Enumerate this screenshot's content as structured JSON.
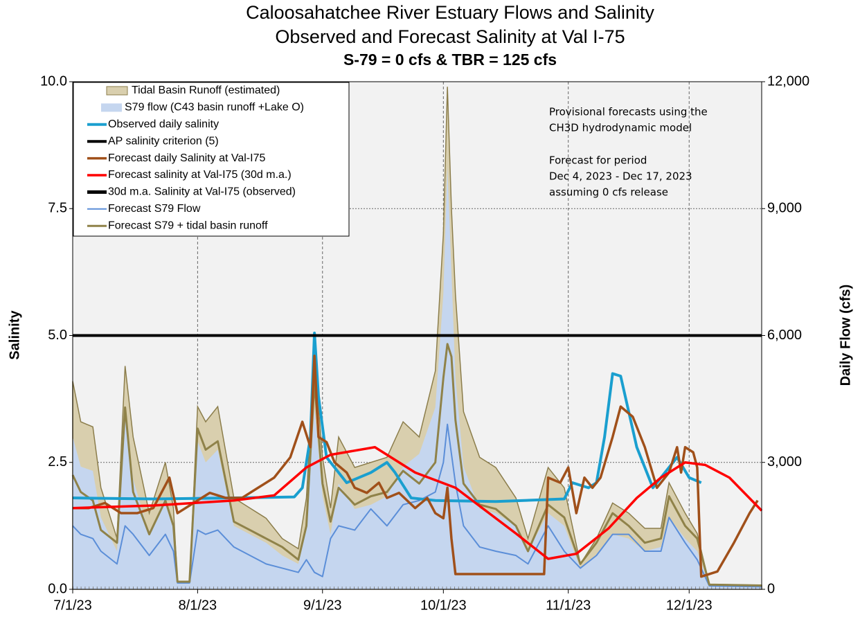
{
  "chart_data": {
    "type": "line",
    "title": "Caloosahatchee River Estuary Flows and Salinity",
    "subtitle": "Observed and Forecast Salinity at Val I-75",
    "subtitle2": "S-79 = 0 cfs & TBR =  125 cfs",
    "ylabel": "Salinity",
    "y2label": "Daily Flow (cfs)",
    "annotations": [
      "Provisional forecasts using the",
      "CH3D hydrodynamic model",
      "Forecast for period",
      "Dec 4, 2023 - Dec 17, 2023",
      "assuming 0 cfs release"
    ],
    "xlim": [
      "7/1/23",
      "12/19/23"
    ],
    "xticks": [
      "7/1/23",
      "8/1/23",
      "9/1/23",
      "10/1/23",
      "11/1/23",
      "12/1/23"
    ],
    "ylim": [
      0,
      10
    ],
    "yticks": [
      {
        "value": 0,
        "label": "0.0"
      },
      2.5,
      {
        "value": 5,
        "label": "5.0"
      },
      7.5,
      {
        "value": 10,
        "label": "10.0"
      }
    ],
    "y2lim": [
      0,
      12000
    ],
    "y2ticks": [
      0,
      {
        "value": 3000,
        "label": "3,000"
      },
      {
        "value": 6000,
        "label": "6,000"
      },
      {
        "value": 9000,
        "label": "9,000"
      },
      {
        "value": 12000,
        "label": "12,000"
      }
    ],
    "grid": true,
    "legend": "upper left",
    "series": [
      {
        "name": "Tidal Basin Runoff (estimated)",
        "type": "area",
        "axis": "y2",
        "color": "#d9cfae",
        "edge": "#8b7d4b",
        "x": [
          "7/1/23",
          "7/3/23",
          "7/6/23",
          "7/8/23",
          "7/12/23",
          "7/14/23",
          "7/16/23",
          "7/20/23",
          "7/24/23",
          "7/26/23",
          "7/27/23",
          "7/30/23",
          "8/1/23",
          "8/3/23",
          "8/6/23",
          "8/10/23",
          "8/14/23",
          "8/18/23",
          "8/22/23",
          "8/26/23",
          "8/28/23",
          "8/30/23",
          "9/1/23",
          "9/3/23",
          "9/5/23",
          "9/9/23",
          "9/13/23",
          "9/17/23",
          "9/21/23",
          "9/25/23",
          "9/29/23",
          "10/1/23",
          "10/2/23",
          "10/3/23",
          "10/4/23",
          "10/6/23",
          "10/10/23",
          "10/14/23",
          "10/19/23",
          "10/22/23",
          "10/27/23",
          "10/31/23",
          "11/4/23",
          "11/8/23",
          "11/12/23",
          "11/16/23",
          "11/20/23",
          "11/24/23",
          "11/26/23",
          "11/30/23",
          "12/3/23",
          "12/6/23",
          "12/19/23"
        ],
        "values": [
          4920,
          3960,
          3840,
          2400,
          1200,
          5280,
          3600,
          1800,
          3000,
          1920,
          180,
          180,
          4320,
          3960,
          4320,
          2160,
          1920,
          1680,
          1200,
          960,
          2160,
          5520,
          3120,
          1920,
          3600,
          2880,
          3000,
          3120,
          3960,
          3600,
          5160,
          8400,
          11880,
          9000,
          6960,
          4200,
          3120,
          2880,
          2160,
          1200,
          2880,
          2400,
          600,
          1200,
          2040,
          1800,
          1440,
          1440,
          2520,
          1800,
          1320,
          120,
          96
        ]
      },
      {
        "name": "S79 flow (C43 basin runoff +Lake O)",
        "type": "area",
        "axis": "y2",
        "color": "#c5d6ef",
        "x": [
          "7/1/23",
          "7/3/23",
          "7/6/23",
          "7/8/23",
          "7/12/23",
          "7/14/23",
          "7/16/23",
          "7/20/23",
          "7/24/23",
          "7/26/23",
          "7/27/23",
          "7/30/23",
          "8/1/23",
          "8/3/23",
          "8/6/23",
          "8/10/23",
          "8/14/23",
          "8/18/23",
          "8/22/23",
          "8/26/23",
          "8/28/23",
          "8/30/23",
          "9/1/23",
          "9/3/23",
          "9/5/23",
          "9/9/23",
          "9/13/23",
          "9/17/23",
          "9/21/23",
          "9/25/23",
          "9/29/23",
          "10/1/23",
          "10/2/23",
          "10/3/23",
          "10/4/23",
          "10/6/23",
          "10/10/23",
          "10/14/23",
          "10/19/23",
          "10/22/23",
          "10/27/23",
          "10/31/23",
          "11/4/23",
          "11/8/23",
          "11/12/23",
          "11/16/23",
          "11/20/23",
          "11/24/23",
          "11/26/23",
          "11/30/23",
          "12/3/23",
          "12/6/23",
          "12/19/23"
        ],
        "values": [
          3600,
          2900,
          2800,
          1700,
          900,
          4300,
          2600,
          1300,
          2200,
          1400,
          150,
          150,
          3500,
          3000,
          3300,
          1500,
          1300,
          1100,
          800,
          600,
          1400,
          4300,
          2200,
          1300,
          2500,
          1900,
          2000,
          2200,
          2900,
          3200,
          4300,
          7000,
          10000,
          7500,
          5000,
          2900,
          1900,
          1800,
          1500,
          900,
          1800,
          1500,
          500,
          800,
          1300,
          1200,
          900,
          1000,
          1700,
          1200,
          900,
          100,
          80
        ]
      },
      {
        "name": "Observed daily salinity",
        "type": "line",
        "color": "#1a9fcf",
        "x": [
          "7/1/23",
          "7/21/23",
          "8/10/23",
          "8/25/23",
          "8/27/23",
          "8/29/23",
          "8/30/23",
          "8/31/23",
          "9/2/23",
          "9/7/23",
          "9/13/23",
          "9/17/23",
          "9/19/23",
          "9/23/23",
          "9/29/23",
          "10/14/23",
          "10/31/23",
          "11/2/23",
          "11/6/23",
          "11/8/23",
          "11/10/23",
          "11/12/23",
          "11/14/23",
          "11/18/23",
          "11/22/23",
          "11/28/23",
          "12/1/23",
          "12/4/23"
        ],
        "values": [
          1.8,
          1.78,
          1.8,
          1.82,
          2.0,
          3.0,
          5.05,
          3.8,
          2.6,
          2.1,
          2.3,
          2.5,
          2.3,
          1.8,
          1.75,
          1.73,
          1.78,
          2.1,
          2.0,
          2.1,
          3.0,
          4.25,
          4.2,
          2.8,
          2.0,
          2.6,
          2.2,
          2.1
        ]
      },
      {
        "name": "AP salinity criterion (5)",
        "type": "line",
        "color": "#000000",
        "x": [
          "7/1/23",
          "12/19/23"
        ],
        "values": [
          5,
          5
        ]
      },
      {
        "name": "Forecast daily Salinity at Val-I75",
        "type": "line",
        "color": "#a0501a",
        "x": [
          "7/1/23",
          "7/5/23",
          "7/9/23",
          "7/13/23",
          "7/17/23",
          "7/21/23",
          "7/25/23",
          "7/27/23",
          "7/31/23",
          "8/4/23",
          "8/8/23",
          "8/12/23",
          "8/16/23",
          "8/20/23",
          "8/24/23",
          "8/27/23",
          "8/29/23",
          "8/30/23",
          "8/31/23",
          "9/2/23",
          "9/4/23",
          "9/7/23",
          "9/9/23",
          "9/12/23",
          "9/15/23",
          "9/17/23",
          "9/20/23",
          "9/24/23",
          "9/27/23",
          "9/29/23",
          "10/1/23",
          "10/2/23",
          "10/3/23",
          "10/4/23",
          "10/26/23",
          "10/27/23",
          "10/30/23",
          "11/1/23",
          "11/3/23",
          "11/5/23",
          "11/7/23",
          "11/9/23",
          "11/12/23",
          "11/14/23",
          "11/17/23",
          "11/20/23",
          "11/23/23",
          "11/26/23",
          "11/28/23",
          "11/29/23",
          "11/30/23",
          "12/2/23",
          "12/3/23",
          "12/4/23",
          "12/8/23",
          "12/12/23",
          "12/16/23",
          "12/18/23"
        ],
        "values": [
          1.6,
          1.6,
          1.7,
          1.5,
          1.5,
          1.6,
          2.2,
          1.5,
          1.7,
          1.9,
          1.8,
          1.8,
          2.0,
          2.2,
          2.6,
          3.3,
          2.8,
          4.6,
          3.0,
          2.9,
          2.5,
          2.3,
          2.0,
          1.9,
          2.1,
          1.8,
          1.9,
          1.6,
          1.8,
          1.5,
          1.4,
          2.0,
          1.0,
          0.3,
          0.3,
          2.2,
          2.1,
          2.4,
          1.5,
          2.2,
          2.0,
          2.2,
          3.0,
          3.6,
          3.4,
          2.8,
          2.0,
          2.3,
          2.8,
          2.3,
          2.8,
          2.7,
          2.4,
          0.25,
          0.35,
          0.9,
          1.5,
          1.75
        ]
      },
      {
        "name": "Forecast salinity at Val-I75 (30d m.a.)",
        "type": "line",
        "color": "#ff0000",
        "x": [
          "7/1/23",
          "7/21/23",
          "8/10/23",
          "8/20/23",
          "8/28/23",
          "9/3/23",
          "9/14/23",
          "9/24/23",
          "10/4/23",
          "10/19/23",
          "10/27/23",
          "11/3/23",
          "11/11/23",
          "11/18/23",
          "11/24/23",
          "11/30/23",
          "12/5/23",
          "12/11/23",
          "12/19/23"
        ],
        "values": [
          1.6,
          1.65,
          1.75,
          1.85,
          2.4,
          2.65,
          2.8,
          2.3,
          2.0,
          1.1,
          0.6,
          0.7,
          1.2,
          1.8,
          2.2,
          2.5,
          2.45,
          2.2,
          1.55
        ]
      },
      {
        "name": "30d m.a. Salinity at Val-I75 (observed)",
        "type": "line",
        "color": "#000000",
        "x": [],
        "values": []
      },
      {
        "name": "Forecast S79 Flow",
        "type": "line",
        "axis": "y2",
        "color": "#5b8ed8",
        "x": [
          "7/1/23",
          "7/3/23",
          "7/6/23",
          "7/8/23",
          "7/12/23",
          "7/14/23",
          "7/16/23",
          "7/20/23",
          "7/24/23",
          "7/26/23",
          "7/27/23",
          "7/30/23",
          "8/1/23",
          "8/3/23",
          "8/6/23",
          "8/10/23",
          "8/14/23",
          "8/18/23",
          "8/22/23",
          "8/26/23",
          "8/28/23",
          "8/30/23",
          "9/1/23",
          "9/3/23",
          "9/5/23",
          "9/9/23",
          "9/13/23",
          "9/17/23",
          "9/21/23",
          "9/25/23",
          "9/29/23",
          "10/1/23",
          "10/2/23",
          "10/3/23",
          "10/4/23",
          "10/6/23",
          "10/10/23",
          "10/14/23",
          "10/19/23",
          "10/22/23",
          "10/27/23",
          "10/31/23",
          "11/4/23",
          "11/8/23",
          "11/12/23",
          "11/16/23",
          "11/20/23",
          "11/24/23",
          "11/26/23",
          "11/30/23",
          "12/3/23",
          "12/6/23",
          "12/19/23"
        ],
        "values": [
          1500,
          1300,
          1200,
          900,
          600,
          1500,
          1300,
          800,
          1300,
          900,
          150,
          150,
          1400,
          1300,
          1400,
          1000,
          800,
          600,
          500,
          400,
          700,
          400,
          300,
          1200,
          1500,
          1400,
          1900,
          1500,
          2000,
          2100,
          2300,
          3000,
          3900,
          3200,
          2500,
          1500,
          1000,
          900,
          800,
          600,
          1500,
          900,
          500,
          800,
          1300,
          1300,
          900,
          900,
          1700,
          1100,
          700,
          80,
          60
        ]
      },
      {
        "name": "Forecast S79 + tidal basin runoff",
        "type": "line",
        "axis": "y2",
        "color": "#8f8249",
        "x": [
          "7/1/23",
          "7/3/23",
          "7/6/23",
          "7/8/23",
          "7/12/23",
          "7/14/23",
          "7/16/23",
          "7/20/23",
          "7/24/23",
          "7/26/23",
          "7/27/23",
          "7/30/23",
          "8/1/23",
          "8/3/23",
          "8/6/23",
          "8/10/23",
          "8/14/23",
          "8/18/23",
          "8/22/23",
          "8/26/23",
          "8/28/23",
          "8/30/23",
          "9/1/23",
          "9/3/23",
          "9/5/23",
          "9/9/23",
          "9/13/23",
          "9/17/23",
          "9/21/23",
          "9/25/23",
          "9/29/23",
          "10/1/23",
          "10/2/23",
          "10/3/23",
          "10/4/23",
          "10/6/23",
          "10/10/23",
          "10/14/23",
          "10/19/23",
          "10/22/23",
          "10/27/23",
          "10/31/23",
          "11/4/23",
          "11/8/23",
          "11/12/23",
          "11/16/23",
          "11/20/23",
          "11/24/23",
          "11/26/23",
          "11/30/23",
          "12/3/23",
          "12/6/23",
          "12/19/23"
        ],
        "values": [
          2700,
          2300,
          2100,
          1400,
          1100,
          4300,
          2300,
          1300,
          2100,
          1500,
          180,
          180,
          3800,
          3300,
          3500,
          1600,
          1400,
          1200,
          1000,
          700,
          1500,
          4900,
          2500,
          1600,
          2400,
          2000,
          2200,
          2300,
          2800,
          2500,
          3000,
          5000,
          5800,
          5500,
          4000,
          2500,
          2000,
          1900,
          1500,
          900,
          2000,
          1700,
          600,
          1100,
          1800,
          1500,
          1100,
          1200,
          2200,
          1500,
          1200,
          110,
          90
        ]
      }
    ]
  }
}
